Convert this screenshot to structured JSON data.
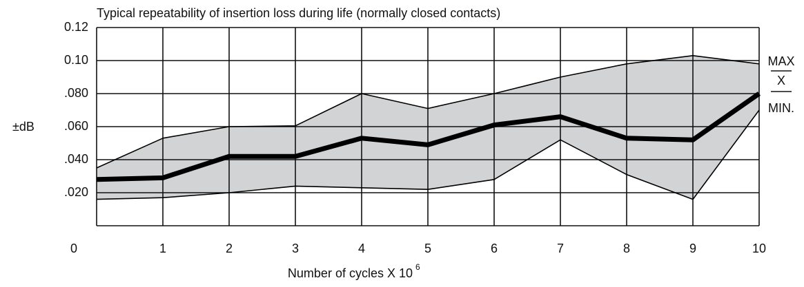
{
  "chart_data": {
    "type": "line",
    "title": "Typical repeatability of insertion loss during life (normally closed contacts)",
    "x_label": "Number of cycles X 10",
    "x_label_superscript": "6",
    "y_label": "±dB",
    "x": [
      0,
      1,
      2,
      3,
      4,
      5,
      6,
      7,
      8,
      9,
      10
    ],
    "series": [
      {
        "name": "MAX",
        "color": "#000000",
        "values": [
          0.035,
          0.053,
          0.06,
          0.0605,
          0.08,
          0.071,
          0.08,
          0.09,
          0.098,
          0.103,
          0.098
        ]
      },
      {
        "name": "X",
        "color": "#000000",
        "values": [
          0.028,
          0.029,
          0.042,
          0.042,
          0.053,
          0.049,
          0.061,
          0.066,
          0.053,
          0.052,
          0.08
        ]
      },
      {
        "name": "MIN.",
        "color": "#000000",
        "values": [
          0.016,
          0.017,
          0.02,
          0.024,
          0.023,
          0.022,
          0.028,
          0.052,
          0.031,
          0.016,
          0.07
        ]
      }
    ],
    "band_color": "#d1d3d4",
    "xlim": [
      0,
      10
    ],
    "ylim": [
      0,
      0.12
    ],
    "xticks": [
      0,
      1,
      2,
      3,
      4,
      5,
      6,
      7,
      8,
      9,
      10
    ],
    "yticks": [
      0,
      {
        "value": 0.02,
        "label": ".020"
      },
      {
        "value": 0.04,
        "label": ".040"
      },
      {
        "value": 0.06,
        "label": ".060"
      },
      {
        "value": 0.08,
        "label": ".080"
      },
      {
        "value": 0.1,
        "label": "0.10"
      },
      0.12
    ],
    "grid": true
  }
}
